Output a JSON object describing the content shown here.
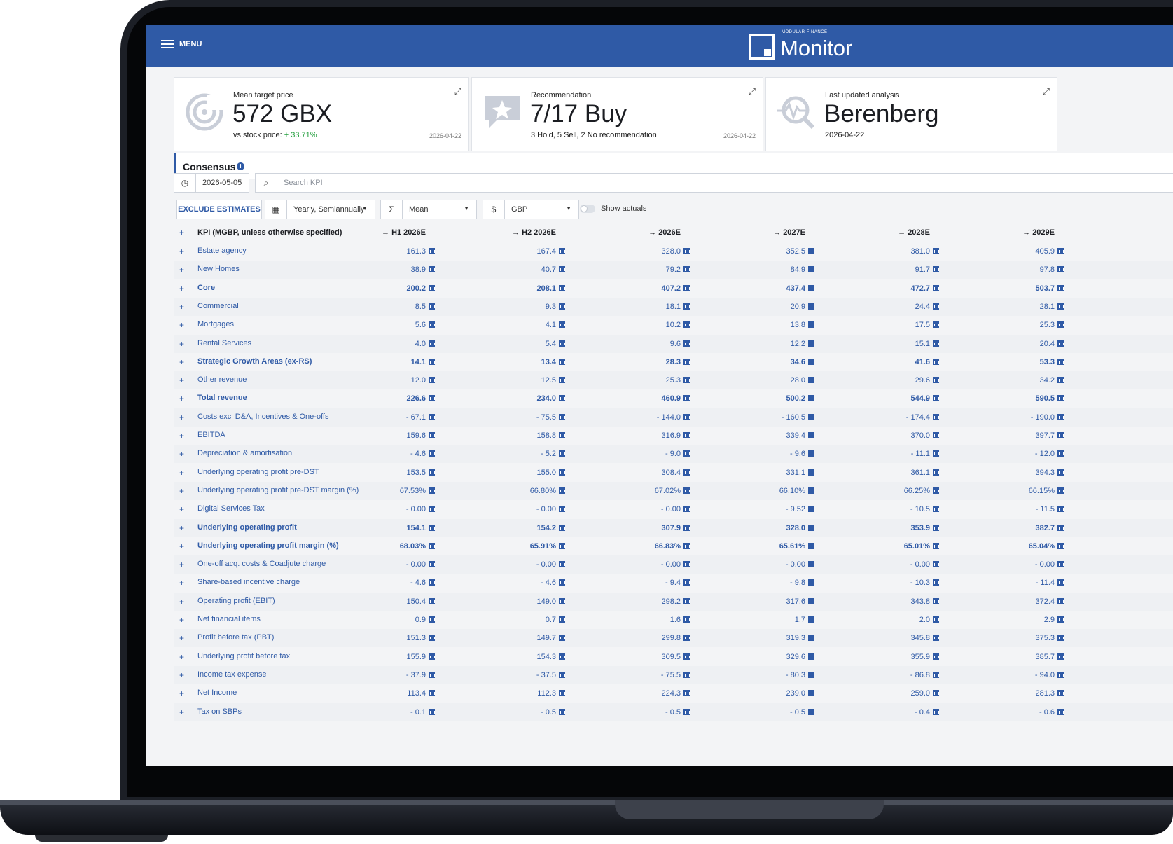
{
  "menu_label": "MENU",
  "brand": {
    "small": "MODULAR FINANCE",
    "name": "Monitor"
  },
  "cards": [
    {
      "label": "Mean target price",
      "value": "572 GBX",
      "sub_prefix": "vs stock price:",
      "sub_highlight": "+ 33.71%",
      "date": "2026-04-22",
      "icon": "target-icon"
    },
    {
      "label": "Recommendation",
      "value": "7/17 Buy",
      "sub_prefix": "3 Hold, 5 Sell, 2 No recommendation",
      "sub_highlight": "",
      "date": "2026-04-22",
      "icon": "star-bubble-icon"
    },
    {
      "label": "Last updated analysis",
      "value": "Berenberg",
      "sub_prefix": "2026-04-22",
      "sub_highlight": "",
      "date": "",
      "icon": "analysis-search-icon"
    }
  ],
  "consensus": {
    "title": "Consensus",
    "info": "i"
  },
  "controls": {
    "date": "2026-05-05",
    "search_placeholder": "Search KPI",
    "exclude_label": "EXCLUDE ESTIMATES",
    "period": "Yearly, Semiannually",
    "aggregate": "Mean",
    "currency": "GBP",
    "show_actuals": "Show actuals"
  },
  "table": {
    "header_label": "KPI (MGBP, unless otherwise specified)",
    "columns": [
      "H1 2026E",
      "H2 2026E",
      "2026E",
      "2027E",
      "2028E",
      "2029E"
    ],
    "rows": [
      {
        "name": "Estate agency",
        "bold": false,
        "values": [
          "161.3",
          "167.4",
          "328.0",
          "352.5",
          "381.0",
          "405.9"
        ]
      },
      {
        "name": "New Homes",
        "bold": false,
        "values": [
          "38.9",
          "40.7",
          "79.2",
          "84.9",
          "91.7",
          "97.8"
        ]
      },
      {
        "name": "Core",
        "bold": true,
        "values": [
          "200.2",
          "208.1",
          "407.2",
          "437.4",
          "472.7",
          "503.7"
        ]
      },
      {
        "name": "Commercial",
        "bold": false,
        "values": [
          "8.5",
          "9.3",
          "18.1",
          "20.9",
          "24.4",
          "28.1"
        ]
      },
      {
        "name": "Mortgages",
        "bold": false,
        "values": [
          "5.6",
          "4.1",
          "10.2",
          "13.8",
          "17.5",
          "25.3"
        ]
      },
      {
        "name": "Rental Services",
        "bold": false,
        "values": [
          "4.0",
          "5.4",
          "9.6",
          "12.2",
          "15.1",
          "20.4"
        ]
      },
      {
        "name": "Strategic Growth Areas (ex-RS)",
        "bold": true,
        "values": [
          "14.1",
          "13.4",
          "28.3",
          "34.6",
          "41.6",
          "53.3"
        ]
      },
      {
        "name": "Other revenue",
        "bold": false,
        "values": [
          "12.0",
          "12.5",
          "25.3",
          "28.0",
          "29.6",
          "34.2"
        ]
      },
      {
        "name": "Total revenue",
        "bold": true,
        "values": [
          "226.6",
          "234.0",
          "460.9",
          "500.2",
          "544.9",
          "590.5"
        ]
      },
      {
        "name": "Costs excl D&A, Incentives & One-offs",
        "bold": false,
        "values": [
          "- 67.1",
          "- 75.5",
          "- 144.0",
          "- 160.5",
          "- 174.4",
          "- 190.0"
        ]
      },
      {
        "name": "EBITDA",
        "bold": false,
        "values": [
          "159.6",
          "158.8",
          "316.9",
          "339.4",
          "370.0",
          "397.7"
        ]
      },
      {
        "name": "Depreciation & amortisation",
        "bold": false,
        "values": [
          "- 4.6",
          "- 5.2",
          "- 9.0",
          "- 9.6",
          "- 11.1",
          "- 12.0"
        ]
      },
      {
        "name": "Underlying operating profit pre-DST",
        "bold": false,
        "values": [
          "153.5",
          "155.0",
          "308.4",
          "331.1",
          "361.1",
          "394.3"
        ]
      },
      {
        "name": "Underlying operating profit pre-DST margin (%)",
        "bold": false,
        "values": [
          "67.53%",
          "66.80%",
          "67.02%",
          "66.10%",
          "66.25%",
          "66.15%"
        ]
      },
      {
        "name": "Digital Services Tax",
        "bold": false,
        "values": [
          "- 0.00",
          "- 0.00",
          "- 0.00",
          "- 9.52",
          "- 10.5",
          "- 11.5"
        ]
      },
      {
        "name": "Underlying operating profit",
        "bold": true,
        "values": [
          "154.1",
          "154.2",
          "307.9",
          "328.0",
          "353.9",
          "382.7"
        ]
      },
      {
        "name": "Underlying operating profit margin (%)",
        "bold": true,
        "values": [
          "68.03%",
          "65.91%",
          "66.83%",
          "65.61%",
          "65.01%",
          "65.04%"
        ]
      },
      {
        "name": "One-off acq. costs & Coadjute charge",
        "bold": false,
        "values": [
          "- 0.00",
          "- 0.00",
          "- 0.00",
          "- 0.00",
          "- 0.00",
          "- 0.00"
        ]
      },
      {
        "name": "Share-based incentive charge",
        "bold": false,
        "values": [
          "- 4.6",
          "- 4.6",
          "- 9.4",
          "- 9.8",
          "- 10.3",
          "- 11.4"
        ]
      },
      {
        "name": "Operating profit (EBIT)",
        "bold": false,
        "values": [
          "150.4",
          "149.0",
          "298.2",
          "317.6",
          "343.8",
          "372.4"
        ]
      },
      {
        "name": "Net financial items",
        "bold": false,
        "values": [
          "0.9",
          "0.7",
          "1.6",
          "1.7",
          "2.0",
          "2.9"
        ]
      },
      {
        "name": "Profit before tax (PBT)",
        "bold": false,
        "values": [
          "151.3",
          "149.7",
          "299.8",
          "319.3",
          "345.8",
          "375.3"
        ]
      },
      {
        "name": "Underlying profit before tax",
        "bold": false,
        "values": [
          "155.9",
          "154.3",
          "309.5",
          "329.6",
          "355.9",
          "385.7"
        ]
      },
      {
        "name": "Income tax expense",
        "bold": false,
        "values": [
          "- 37.9",
          "- 37.5",
          "- 75.5",
          "- 80.3",
          "- 86.8",
          "- 94.0"
        ]
      },
      {
        "name": "Net Income",
        "bold": false,
        "values": [
          "113.4",
          "112.3",
          "224.3",
          "239.0",
          "259.0",
          "281.3"
        ]
      },
      {
        "name": "Tax on SBPs",
        "bold": false,
        "values": [
          "- 0.1",
          "- 0.5",
          "- 0.5",
          "- 0.5",
          "- 0.4",
          "- 0.6"
        ]
      }
    ]
  }
}
